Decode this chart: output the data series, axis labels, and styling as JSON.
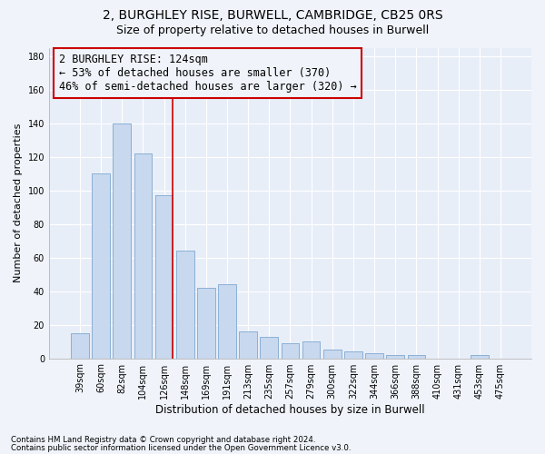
{
  "title": "2, BURGHLEY RISE, BURWELL, CAMBRIDGE, CB25 0RS",
  "subtitle": "Size of property relative to detached houses in Burwell",
  "xlabel": "Distribution of detached houses by size in Burwell",
  "ylabel": "Number of detached properties",
  "categories": [
    "39sqm",
    "60sqm",
    "82sqm",
    "104sqm",
    "126sqm",
    "148sqm",
    "169sqm",
    "191sqm",
    "213sqm",
    "235sqm",
    "257sqm",
    "279sqm",
    "300sqm",
    "322sqm",
    "344sqm",
    "366sqm",
    "388sqm",
    "410sqm",
    "431sqm",
    "453sqm",
    "475sqm"
  ],
  "values": [
    15,
    110,
    140,
    122,
    97,
    64,
    42,
    44,
    16,
    13,
    9,
    10,
    5,
    4,
    3,
    2,
    2,
    0,
    0,
    2,
    0
  ],
  "bar_color": "#c8d8ee",
  "bar_edge_color": "#7fa8d0",
  "highlight_index": 4,
  "highlight_line_color": "#cc0000",
  "annotation_line1": "2 BURGHLEY RISE: 124sqm",
  "annotation_line2": "← 53% of detached houses are smaller (370)",
  "annotation_line3": "46% of semi-detached houses are larger (320) →",
  "ylim": [
    0,
    185
  ],
  "yticks": [
    0,
    20,
    40,
    60,
    80,
    100,
    120,
    140,
    160,
    180
  ],
  "footnote1": "Contains HM Land Registry data © Crown copyright and database right 2024.",
  "footnote2": "Contains public sector information licensed under the Open Government Licence v3.0.",
  "background_color": "#f0f4fa",
  "plot_bg_color": "#e8eef8",
  "title_fontsize": 10,
  "subtitle_fontsize": 9,
  "annotation_fontsize": 8.5
}
